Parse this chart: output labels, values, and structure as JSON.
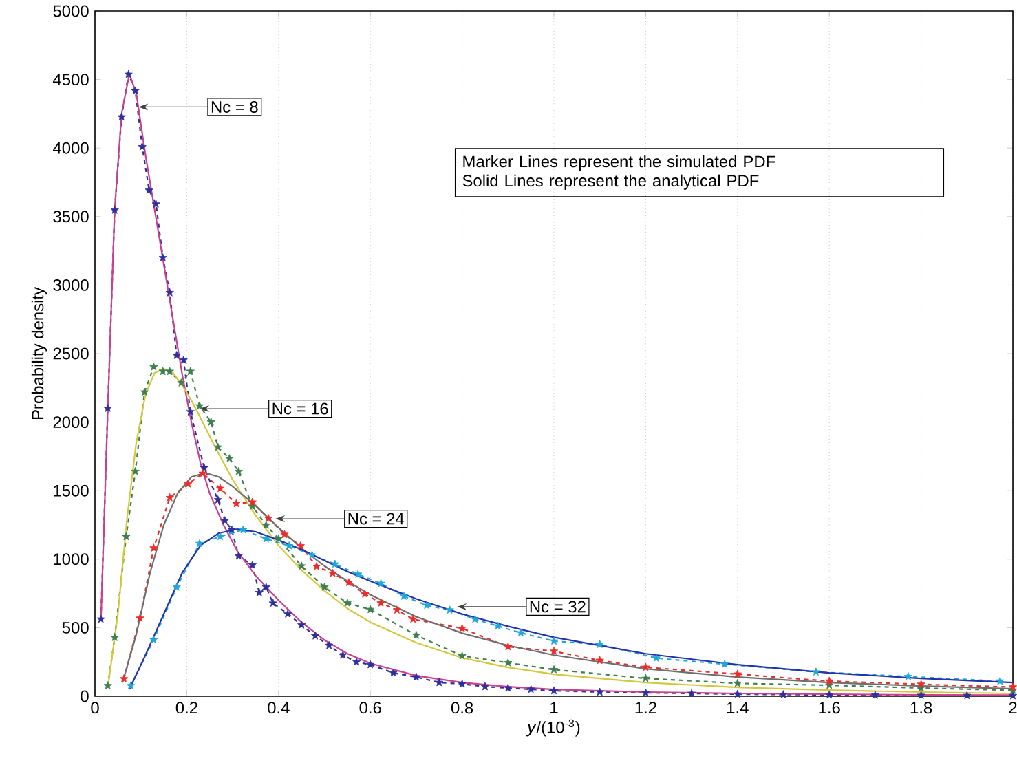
{
  "chart_data": {
    "type": "line",
    "xlabel": "*y*/(10$^{-3}$)",
    "ylabel": "Probability density",
    "xlim": [
      0,
      2
    ],
    "ylim": [
      0,
      5000
    ],
    "xticks": [
      0,
      0.2,
      0.4,
      0.6,
      0.8,
      1,
      1.2,
      1.4,
      1.6,
      1.8,
      2
    ],
    "yticks": [
      0,
      500,
      1000,
      1500,
      2000,
      2500,
      3000,
      3500,
      4000,
      4500,
      5000
    ],
    "grid": "x",
    "annotations": [
      {
        "text": "Nc = 8",
        "x": 0.095,
        "y": 4300
      },
      {
        "text": "Nc = 16",
        "x": 0.228,
        "y": 2098
      },
      {
        "text": "Nc = 24",
        "x": 0.393,
        "y": 1295
      },
      {
        "text": "Nc = 32",
        "x": 0.789,
        "y": 653
      },
      "Marker Lines represent the simulated PDF",
      "Solid Lines represent the analytical PDF"
    ],
    "series": [
      {
        "color": "#2e2e9e",
        "marker": "star",
        "line_style": "dashed",
        "x": [
          0.013,
          0.028,
          0.043,
          0.058,
          0.073,
          0.088,
          0.103,
          0.118,
          0.133,
          0.148,
          0.163,
          0.178,
          0.193,
          0.208,
          0.238,
          0.268,
          0.283,
          0.298,
          0.313,
          0.343,
          0.358,
          0.373,
          0.388,
          0.42,
          0.45,
          0.48,
          0.51,
          0.54,
          0.57,
          0.6,
          0.65,
          0.7,
          0.75,
          0.8,
          0.85,
          0.9,
          0.95,
          1.0,
          1.1,
          1.2,
          1.3,
          1.4,
          1.5,
          1.6,
          1.7,
          1.8,
          1.9,
          2.0
        ],
        "values": [
          562,
          2101,
          3547,
          4227,
          4538,
          4418,
          4009,
          3692,
          3591,
          3200,
          2945,
          2487,
          2453,
          2075,
          1667,
          1433,
          1282,
          1215,
          1024,
          957,
          756,
          796,
          679,
          600,
          520,
          440,
          370,
          300,
          250,
          230,
          170,
          140,
          100,
          90,
          70,
          60,
          50,
          40,
          30,
          25,
          20,
          15,
          12,
          10,
          8,
          6,
          5,
          4
        ]
      },
      {
        "color": "#cc3f8f",
        "marker": "none",
        "line_style": "solid",
        "x": [
          0.013,
          0.028,
          0.043,
          0.058,
          0.075,
          0.09,
          0.11,
          0.13,
          0.15,
          0.17,
          0.19,
          0.21,
          0.23,
          0.25,
          0.28,
          0.31,
          0.35,
          0.4,
          0.45,
          0.5,
          0.55,
          0.6,
          0.7,
          0.8,
          0.9,
          1.0,
          1.2,
          1.4,
          1.6,
          1.8,
          2.0
        ],
        "values": [
          550,
          2100,
          3550,
          4250,
          4540,
          4400,
          3950,
          3550,
          3150,
          2750,
          2350,
          2000,
          1700,
          1480,
          1250,
          1060,
          880,
          700,
          540,
          410,
          310,
          240,
          150,
          100,
          70,
          50,
          30,
          20,
          15,
          10,
          8
        ]
      },
      {
        "color": "#3f7f4f",
        "marker": "star",
        "line_style": "dashed",
        "x": [
          0.028,
          0.043,
          0.068,
          0.088,
          0.108,
          0.128,
          0.148,
          0.163,
          0.188,
          0.208,
          0.228,
          0.253,
          0.268,
          0.293,
          0.313,
          0.343,
          0.373,
          0.4,
          0.45,
          0.5,
          0.55,
          0.6,
          0.7,
          0.8,
          0.9,
          1.0,
          1.2,
          1.4,
          1.6,
          1.8,
          2.0
        ],
        "values": [
          77,
          429,
          1165,
          1640,
          2219,
          2403,
          2370,
          2370,
          2286,
          2370,
          2118,
          2001,
          1817,
          1734,
          1640,
          1386,
          1248,
          1150,
          950,
          796,
          680,
          632,
          445,
          294,
          244,
          194,
          130,
          94,
          80,
          60,
          43
        ]
      },
      {
        "color": "#d4c83a",
        "marker": "none",
        "line_style": "solid",
        "x": [
          0.028,
          0.05,
          0.07,
          0.09,
          0.11,
          0.13,
          0.15,
          0.17,
          0.19,
          0.21,
          0.23,
          0.26,
          0.3,
          0.35,
          0.4,
          0.45,
          0.5,
          0.55,
          0.6,
          0.7,
          0.8,
          0.9,
          1.0,
          1.2,
          1.4,
          1.6,
          1.8,
          2.0
        ],
        "values": [
          60,
          600,
          1300,
          1850,
          2200,
          2360,
          2390,
          2360,
          2270,
          2160,
          2030,
          1830,
          1580,
          1320,
          1100,
          920,
          770,
          640,
          540,
          390,
          280,
          210,
          160,
          100,
          65,
          45,
          30,
          20
        ]
      },
      {
        "color": "#ee2a2a",
        "marker": "star",
        "line_style": "dashed",
        "x": [
          0.063,
          0.098,
          0.128,
          0.163,
          0.203,
          0.235,
          0.273,
          0.308,
          0.343,
          0.378,
          0.413,
          0.448,
          0.483,
          0.518,
          0.553,
          0.588,
          0.623,
          0.658,
          0.693,
          0.8,
          0.9,
          1.0,
          1.1,
          1.2,
          1.4,
          1.6,
          1.8,
          2.0
        ],
        "values": [
          127,
          569,
          1081,
          1449,
          1549,
          1626,
          1516,
          1406,
          1416,
          1298,
          1181,
          1097,
          947,
          897,
          830,
          746,
          680,
          629,
          562,
          495,
          361,
          328,
          261,
          211,
          161,
          110,
          87,
          67
        ]
      },
      {
        "color": "#6e6e6e",
        "marker": "none",
        "line_style": "solid",
        "x": [
          0.06,
          0.09,
          0.12,
          0.15,
          0.18,
          0.21,
          0.24,
          0.27,
          0.3,
          0.35,
          0.4,
          0.45,
          0.5,
          0.55,
          0.6,
          0.7,
          0.8,
          0.9,
          1.0,
          1.2,
          1.4,
          1.6,
          1.8,
          2.0
        ],
        "values": [
          100,
          450,
          900,
          1250,
          1480,
          1600,
          1630,
          1600,
          1530,
          1390,
          1230,
          1080,
          950,
          840,
          740,
          580,
          460,
          370,
          300,
          200,
          140,
          100,
          75,
          55
        ]
      },
      {
        "color": "#22a6d8",
        "marker": "star",
        "line_style": "dashed",
        "x": [
          0.078,
          0.128,
          0.178,
          0.228,
          0.273,
          0.323,
          0.373,
          0.423,
          0.473,
          0.523,
          0.573,
          0.623,
          0.673,
          0.723,
          0.773,
          0.828,
          0.878,
          0.928,
          1.0,
          1.1,
          1.223,
          1.372,
          1.571,
          1.772,
          1.972
        ],
        "values": [
          77,
          412,
          796,
          1114,
          1165,
          1215,
          1148,
          1097,
          1030,
          964,
          890,
          823,
          730,
          663,
          629,
          562,
          512,
          462,
          402,
          378,
          278,
          234,
          177,
          144,
          110
        ]
      },
      {
        "color": "#2233aa",
        "marker": "none",
        "line_style": "solid",
        "x": [
          0.075,
          0.11,
          0.15,
          0.19,
          0.23,
          0.27,
          0.31,
          0.35,
          0.4,
          0.45,
          0.5,
          0.55,
          0.6,
          0.7,
          0.8,
          0.9,
          1.0,
          1.2,
          1.4,
          1.6,
          1.8,
          2.0
        ],
        "values": [
          50,
          300,
          600,
          900,
          1100,
          1190,
          1220,
          1200,
          1140,
          1070,
          990,
          910,
          840,
          710,
          600,
          510,
          430,
          310,
          230,
          170,
          130,
          100
        ]
      }
    ]
  }
}
